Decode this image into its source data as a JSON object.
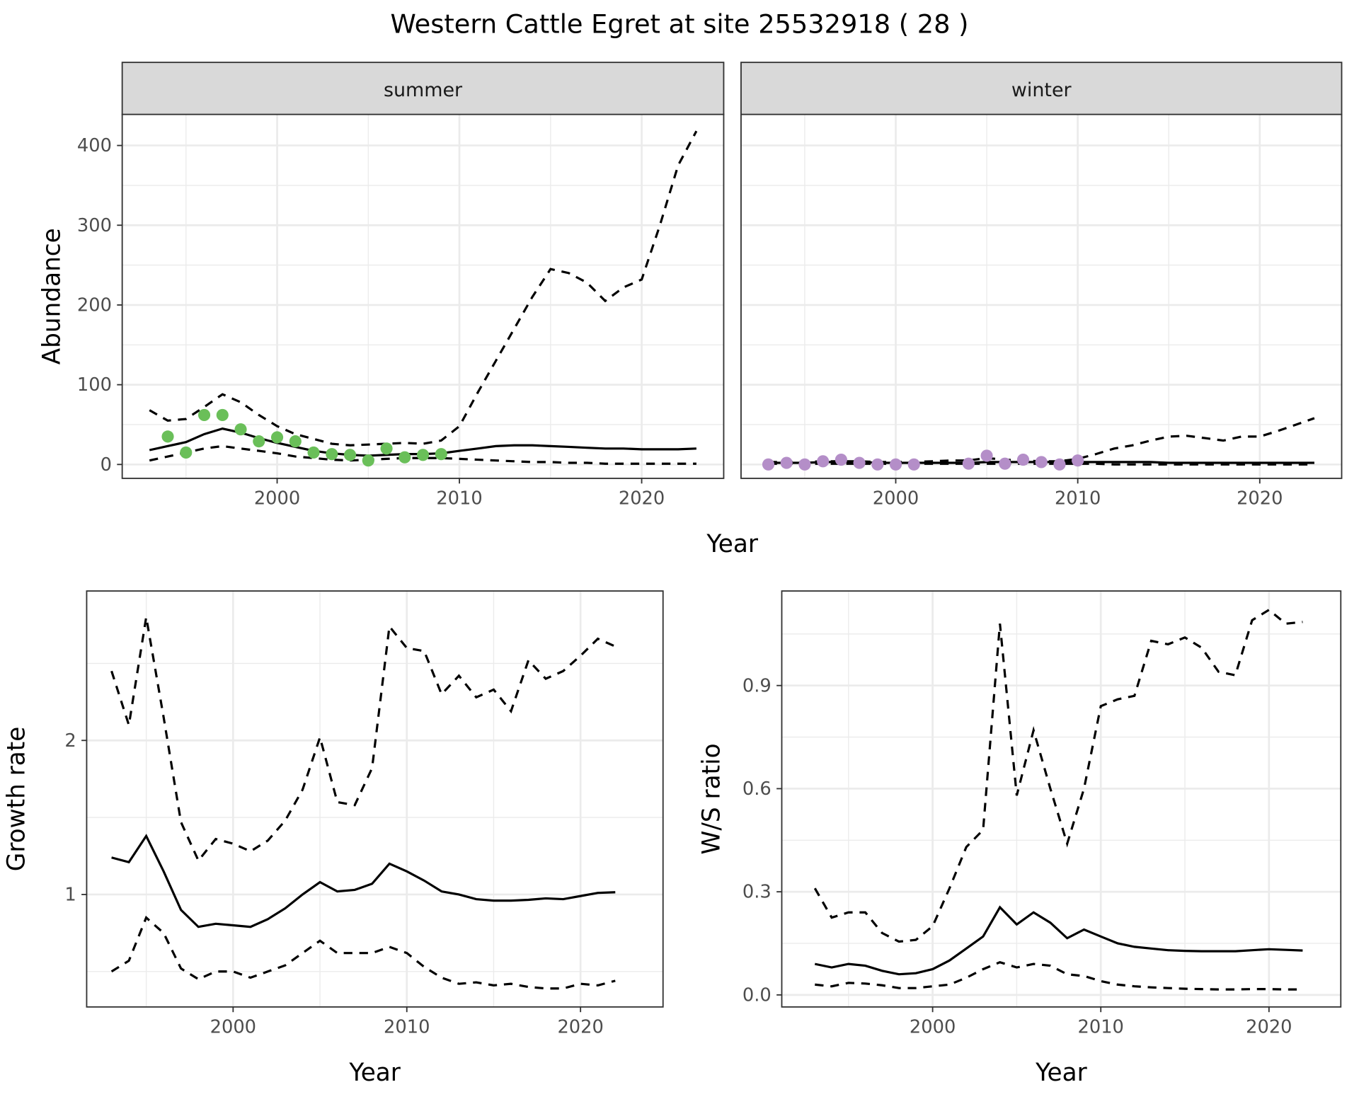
{
  "title": "Western Cattle Egret at site 25532918 ( 28 )",
  "colors": {
    "summer_points": "#6abf59",
    "winter_points": "#b48ec8",
    "strip_bg": "#d9d9d9",
    "line": "#000000",
    "grid": "#ebebeb"
  },
  "chart_data": [
    {
      "type": "line",
      "facet": "summer",
      "strip_label": "summer",
      "xlabel": "Year",
      "ylabel": "Abundance",
      "xlim": [
        1991.5,
        2024.5
      ],
      "ylim": [
        -17.4,
        439
      ],
      "xticks": [
        2000,
        2010,
        2020
      ],
      "yticks": [
        0,
        100,
        200,
        300,
        400
      ],
      "grid": true,
      "x": [
        1993,
        1994,
        1995,
        1996,
        1997,
        1998,
        1999,
        2000,
        2001,
        2002,
        2003,
        2004,
        2005,
        2006,
        2007,
        2008,
        2009,
        2010,
        2011,
        2012,
        2013,
        2014,
        2015,
        2016,
        2017,
        2018,
        2019,
        2020,
        2021,
        2022,
        2023
      ],
      "series": [
        {
          "style": "solid",
          "values": [
            18,
            23,
            28,
            38,
            45,
            40,
            33,
            27,
            22,
            17,
            14,
            12,
            11,
            12,
            13,
            13,
            14,
            17,
            20,
            23,
            24,
            24,
            23,
            22,
            21,
            20,
            20,
            19,
            19,
            19,
            20
          ]
        },
        {
          "style": "dashed",
          "values": [
            68,
            55,
            57,
            72,
            88,
            78,
            62,
            48,
            38,
            32,
            26,
            24,
            25,
            26,
            27,
            26,
            30,
            48,
            90,
            130,
            170,
            210,
            245,
            240,
            228,
            205,
            222,
            232,
            300,
            375,
            418
          ]
        },
        {
          "style": "dashed",
          "values": [
            5,
            10,
            15,
            20,
            23,
            20,
            17,
            14,
            10,
            8,
            6,
            5,
            6,
            7,
            8,
            8,
            8,
            7,
            6,
            5,
            4,
            3,
            3,
            2,
            2,
            1,
            1,
            1,
            1,
            1,
            1
          ]
        }
      ],
      "points": {
        "x": [
          1994,
          1995,
          1996,
          1997,
          1998,
          1999,
          2000,
          2001,
          2002,
          2003,
          2004,
          2005,
          2006,
          2007,
          2008,
          2009
        ],
        "y": [
          35,
          15,
          62,
          62,
          44,
          29,
          34,
          29,
          15,
          13,
          12,
          5,
          20,
          9,
          12,
          13
        ]
      }
    },
    {
      "type": "line",
      "facet": "winter",
      "strip_label": "winter",
      "xlabel": "Year",
      "xlim": [
        1991.5,
        2024.5
      ],
      "ylim": [
        -17.4,
        439
      ],
      "xticks": [
        2000,
        2010,
        2020
      ],
      "yticks": [
        0,
        100,
        200,
        300,
        400
      ],
      "grid": true,
      "x": [
        1993,
        1994,
        1995,
        1996,
        1997,
        1998,
        1999,
        2000,
        2001,
        2002,
        2003,
        2004,
        2005,
        2006,
        2007,
        2008,
        2009,
        2010,
        2011,
        2012,
        2013,
        2014,
        2015,
        2016,
        2017,
        2018,
        2019,
        2020,
        2021,
        2022,
        2023
      ],
      "series": [
        {
          "style": "solid",
          "values": [
            2,
            2,
            2,
            3,
            3,
            3,
            2,
            2,
            2,
            2,
            2,
            2,
            3,
            3,
            3,
            3,
            3,
            3,
            3,
            3,
            3,
            3,
            2,
            2,
            2,
            2,
            2,
            2,
            2,
            2,
            2
          ]
        },
        {
          "style": "dashed",
          "values": [
            3,
            3,
            3,
            4,
            4,
            4,
            3,
            3,
            3,
            4,
            5,
            5,
            8,
            6,
            5,
            4,
            4,
            7,
            13,
            20,
            24,
            30,
            35,
            36,
            33,
            30,
            35,
            35,
            42,
            50,
            58
          ]
        },
        {
          "style": "dashed",
          "values": [
            1,
            1,
            1,
            1,
            1,
            1,
            1,
            1,
            1,
            1,
            1,
            1,
            1,
            1,
            1,
            1,
            1,
            1,
            1,
            0,
            0,
            0,
            0,
            0,
            0,
            0,
            0,
            0,
            0,
            0,
            0
          ]
        }
      ],
      "points": {
        "x": [
          1993,
          1994,
          1995,
          1996,
          1997,
          1998,
          1999,
          2000,
          2001,
          2004,
          2005,
          2006,
          2007,
          2008,
          2009,
          2010
        ],
        "y": [
          0,
          2,
          0,
          4,
          6,
          2,
          0,
          0,
          0,
          1,
          11,
          1,
          6,
          3,
          0,
          5
        ]
      }
    },
    {
      "type": "line",
      "xlabel": "Year",
      "ylabel": "Growth rate",
      "xlim": [
        1991.57,
        2024.75
      ],
      "ylim": [
        0.27,
        2.97
      ],
      "xticks": [
        2000,
        2010,
        2020
      ],
      "yticks": [
        1,
        2
      ],
      "grid": true,
      "x": [
        1993,
        1994,
        1995,
        1996,
        1997,
        1998,
        1999,
        2000,
        2001,
        2002,
        2003,
        2004,
        2005,
        2006,
        2007,
        2008,
        2009,
        2010,
        2011,
        2012,
        2013,
        2014,
        2015,
        2016,
        2017,
        2018,
        2019,
        2020,
        2021,
        2022
      ],
      "series": [
        {
          "style": "solid",
          "values": [
            1.24,
            1.21,
            1.38,
            1.15,
            0.9,
            0.79,
            0.81,
            0.8,
            0.79,
            0.84,
            0.91,
            1.0,
            1.08,
            1.02,
            1.03,
            1.07,
            1.2,
            1.15,
            1.09,
            1.02,
            1.0,
            0.97,
            0.96,
            0.96,
            0.965,
            0.975,
            0.97,
            0.99,
            1.01,
            1.015
          ]
        },
        {
          "style": "dashed",
          "values": [
            2.45,
            2.1,
            2.8,
            2.15,
            1.47,
            1.22,
            1.36,
            1.33,
            1.28,
            1.35,
            1.48,
            1.68,
            2.02,
            1.6,
            1.58,
            1.82,
            2.74,
            2.6,
            2.58,
            2.3,
            2.42,
            2.28,
            2.33,
            2.19,
            2.52,
            2.4,
            2.45,
            2.55,
            2.66,
            2.61
          ]
        },
        {
          "style": "dashed",
          "values": [
            0.5,
            0.57,
            0.85,
            0.75,
            0.52,
            0.45,
            0.5,
            0.5,
            0.46,
            0.5,
            0.54,
            0.62,
            0.7,
            0.62,
            0.62,
            0.62,
            0.66,
            0.62,
            0.53,
            0.46,
            0.42,
            0.43,
            0.41,
            0.42,
            0.4,
            0.39,
            0.39,
            0.42,
            0.41,
            0.44
          ]
        }
      ]
    },
    {
      "type": "line",
      "xlabel": "Year",
      "ylabel": "W/S ratio",
      "xlim": [
        1991.03,
        2024.27
      ],
      "ylim": [
        -0.035,
        1.175
      ],
      "xticks": [
        2000,
        2010,
        2020
      ],
      "yticks": [
        0.0,
        0.3,
        0.6,
        0.9
      ],
      "ytick_labels": [
        "0.0",
        "0.3",
        "0.6",
        "0.9"
      ],
      "grid": true,
      "x": [
        1993,
        1994,
        1995,
        1996,
        1997,
        1998,
        1999,
        2000,
        2001,
        2002,
        2003,
        2004,
        2005,
        2006,
        2007,
        2008,
        2009,
        2010,
        2011,
        2012,
        2013,
        2014,
        2015,
        2016,
        2017,
        2018,
        2019,
        2020,
        2021,
        2022
      ],
      "series": [
        {
          "style": "solid",
          "values": [
            0.09,
            0.08,
            0.09,
            0.085,
            0.07,
            0.06,
            0.063,
            0.075,
            0.1,
            0.135,
            0.17,
            0.255,
            0.205,
            0.24,
            0.21,
            0.165,
            0.19,
            0.17,
            0.15,
            0.14,
            0.135,
            0.13,
            0.128,
            0.127,
            0.127,
            0.127,
            0.13,
            0.133,
            0.131,
            0.129
          ]
        },
        {
          "style": "dashed",
          "values": [
            0.31,
            0.225,
            0.24,
            0.24,
            0.18,
            0.155,
            0.16,
            0.2,
            0.31,
            0.43,
            0.48,
            1.08,
            0.58,
            0.77,
            0.6,
            0.44,
            0.6,
            0.84,
            0.86,
            0.87,
            1.03,
            1.02,
            1.04,
            1.01,
            0.94,
            0.93,
            1.09,
            1.12,
            1.08,
            1.085
          ]
        },
        {
          "style": "dashed",
          "values": [
            0.03,
            0.025,
            0.035,
            0.033,
            0.028,
            0.02,
            0.02,
            0.025,
            0.03,
            0.05,
            0.075,
            0.095,
            0.08,
            0.09,
            0.085,
            0.06,
            0.055,
            0.04,
            0.03,
            0.025,
            0.022,
            0.02,
            0.018,
            0.017,
            0.016,
            0.016,
            0.017,
            0.017,
            0.016,
            0.016
          ]
        }
      ]
    }
  ]
}
